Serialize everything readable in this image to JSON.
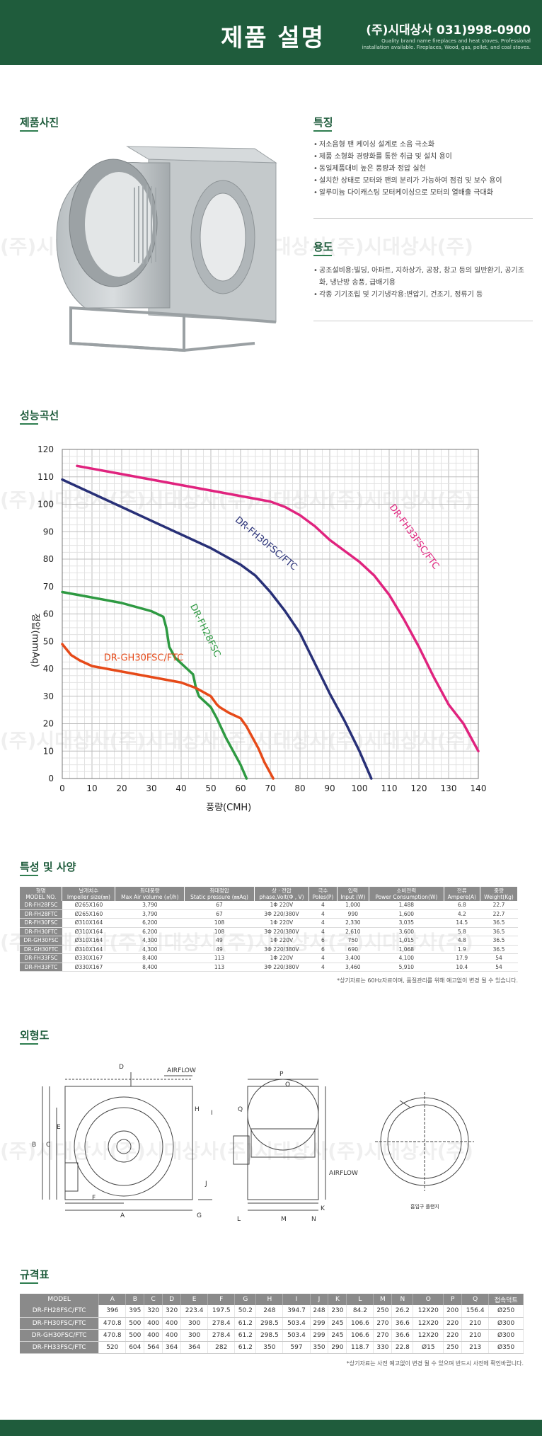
{
  "header": {
    "title": "제품 설명",
    "company": "(주)시대상사 031)998-0900",
    "slogan": "Quality brand name fireplaces and heat stoves. Professional installation available. Fireplaces, Wood, gas, pellet, and coal stoves."
  },
  "sections": {
    "photo": "제품사진",
    "features": "특징",
    "usage": "용도",
    "curve": "성능곡선",
    "specs": "특성 및 사양",
    "outline": "외형도",
    "dims": "규격표"
  },
  "watermark": "(주)시대상사(주)시대상사(주)시대상사(주)시대상사(주)",
  "features": [
    "저소음형 팬 케이싱 설계로 소음 극소화",
    "제품 소형화 경량화를 통한 취급 및 설치 용이",
    "동일제품대비 높은 풍량과 정압 실현",
    "설치한 상태로 모터와 팬의 분리가 가능하여 점검 및 보수 용이",
    "알루미늄 다이캐스팅 모터케이싱으로 모터의 열배출 극대화"
  ],
  "usage": [
    "공조설비용:빌딩, 아파트, 지하상가, 공장, 창고 등의 일반환기, 공기조화, 냉난방 송풍, 급배기용",
    "각종 기기조립 및 기기냉각용:변압기, 건조기, 정류기 등"
  ],
  "chart_data": {
    "type": "line",
    "xlabel": "풍량(CMH)",
    "ylabel": "정압(mmAq)",
    "xlim": [
      0,
      140
    ],
    "ylim": [
      0,
      120
    ],
    "xticks": [
      "0",
      "10",
      "20",
      "30",
      "40",
      "50",
      "60",
      "70",
      "80",
      "90",
      "100",
      "110",
      "120",
      "130",
      "140"
    ],
    "yticks": [
      "0",
      "10",
      "20",
      "30",
      "40",
      "50",
      "60",
      "70",
      "80",
      "90",
      "100",
      "110",
      "120"
    ],
    "grid": true,
    "series": [
      {
        "name": "DR-FH33FSC/FTC",
        "color": "#e0237e",
        "x": [
          5,
          20,
          40,
          60,
          70,
          75,
          80,
          85,
          90,
          95,
          100,
          105,
          110,
          115,
          120,
          125,
          130,
          135,
          140
        ],
        "y": [
          114,
          111,
          107,
          103,
          101,
          99,
          96,
          92,
          87,
          83,
          79,
          74,
          67,
          58,
          48,
          37,
          27,
          20,
          10
        ]
      },
      {
        "name": "DR-FH30FSC/FTC",
        "color": "#283077",
        "x": [
          0,
          10,
          20,
          30,
          40,
          50,
          60,
          65,
          70,
          75,
          80,
          85,
          90,
          95,
          100,
          104
        ],
        "y": [
          109,
          104,
          99,
          94,
          89,
          84,
          78,
          74,
          68,
          61,
          53,
          42,
          31,
          21,
          10,
          0
        ]
      },
      {
        "name": "DR-FH28FSC",
        "color": "#2e9a42",
        "x": [
          0,
          10,
          20,
          30,
          34,
          35,
          36,
          38,
          42,
          44,
          45,
          46,
          50,
          52,
          55,
          58,
          60,
          62
        ],
        "y": [
          68,
          66,
          64,
          61,
          59,
          55,
          48,
          44,
          40,
          38,
          33,
          30,
          26,
          22,
          15,
          9,
          5,
          0
        ]
      },
      {
        "name": "DR-GH30FSC/FTC",
        "color": "#e64a19",
        "x": [
          0,
          3,
          6,
          10,
          20,
          30,
          40,
          45,
          50,
          52,
          53,
          56,
          60,
          62,
          64,
          66,
          68,
          71
        ],
        "y": [
          49,
          45,
          43,
          41,
          39,
          37,
          35,
          33,
          30,
          27,
          26,
          24,
          22,
          19,
          15,
          11,
          6,
          0
        ]
      }
    ]
  },
  "spec_table": {
    "headers": [
      [
        "형명",
        "MODEL NO."
      ],
      [
        "날개치수",
        "Impeller size(㎜)"
      ],
      [
        "최대풍량",
        "Max Air volume (㎥/h)"
      ],
      [
        "최대정압",
        "Static pressure (㎜Aq)"
      ],
      [
        "상 · 전압",
        "phase,Volt(Φ , V)"
      ],
      [
        "극수",
        "Poles(P)"
      ],
      [
        "입력",
        "Input (W)"
      ],
      [
        "소비전력",
        "Power Consumption(W)"
      ],
      [
        "전류",
        "Ampere(A)"
      ],
      [
        "중량",
        "Weight(Kg)"
      ]
    ],
    "rows": [
      [
        "DR-FH28FSC",
        "Ø265X160",
        "3,790",
        "67",
        "1Φ 220V",
        "4",
        "1,000",
        "1,488",
        "6.8",
        "22.7"
      ],
      [
        "DR-FH28FTC",
        "Ø265X160",
        "3,790",
        "67",
        "3Φ 220/380V",
        "4",
        "990",
        "1,600",
        "4.2",
        "22.7"
      ],
      [
        "DR-FH30FSC",
        "Ø310X164",
        "6,200",
        "108",
        "1Φ 220V",
        "4",
        "2,330",
        "3,035",
        "14.5",
        "36.5"
      ],
      [
        "DR-FH30FTC",
        "Ø310X164",
        "6,200",
        "108",
        "3Φ 220/380V",
        "4",
        "2,610",
        "3,600",
        "5.8",
        "36.5"
      ],
      [
        "DR-GH30FSC",
        "Ø310X164",
        "4,300",
        "49",
        "1Φ 220V",
        "6",
        "750",
        "1,015",
        "4.8",
        "36.5"
      ],
      [
        "DR-GH30FTC",
        "Ø310X164",
        "4,300",
        "49",
        "3Φ 220/380V",
        "6",
        "690",
        "1,068",
        "1.9",
        "36.5"
      ],
      [
        "DR-FH33FSC",
        "Ø330X167",
        "8,400",
        "113",
        "1Φ 220V",
        "4",
        "3,400",
        "4,100",
        "17.9",
        "54"
      ],
      [
        "DR-FH33FTC",
        "Ø330X167",
        "8,400",
        "113",
        "3Φ 220/380V",
        "4",
        "3,460",
        "5,910",
        "10.4",
        "54"
      ]
    ],
    "note": "*상기자료는 60Hz자료이며, 품질관리를 위해 예고없이 변경 될 수 있습니다."
  },
  "outline": {
    "labels": [
      "D",
      "E",
      "B",
      "C",
      "F",
      "A",
      "G",
      "H",
      "I",
      "J",
      "P",
      "O",
      "Q",
      "L",
      "M",
      "N",
      "K"
    ],
    "airflow": "AIRFLOW",
    "caption": "흡입구 플랜지"
  },
  "dim_table": {
    "headers": [
      "MODEL",
      "A",
      "B",
      "C",
      "D",
      "E",
      "F",
      "G",
      "H",
      "I",
      "J",
      "K",
      "L",
      "M",
      "N",
      "O",
      "P",
      "Q",
      "접속덕트"
    ],
    "rows": [
      [
        "DR-FH28FSC/FTC",
        "396",
        "395",
        "320",
        "320",
        "223.4",
        "197.5",
        "50.2",
        "248",
        "394.7",
        "248",
        "230",
        "84.2",
        "250",
        "26.2",
        "12X20",
        "200",
        "156.4",
        "Ø250"
      ],
      [
        "DR-FH30FSC/FTC",
        "470.8",
        "500",
        "400",
        "400",
        "300",
        "278.4",
        "61.2",
        "298.5",
        "503.4",
        "299",
        "245",
        "106.6",
        "270",
        "36.6",
        "12X20",
        "220",
        "210",
        "Ø300"
      ],
      [
        "DR-GH30FSC/FTC",
        "470.8",
        "500",
        "400",
        "400",
        "300",
        "278.4",
        "61.2",
        "298.5",
        "503.4",
        "299",
        "245",
        "106.6",
        "270",
        "36.6",
        "12X20",
        "220",
        "210",
        "Ø300"
      ],
      [
        "DR-FH33FSC/FTC",
        "520",
        "604",
        "564",
        "364",
        "364",
        "282",
        "61.2",
        "350",
        "597",
        "350",
        "290",
        "118.7",
        "330",
        "22.8",
        "Ø15",
        "250",
        "213",
        "Ø350"
      ]
    ],
    "note": "*상기자료는 사전 예고없이 변경 될 수 있으며 반드시 사전에 확인바랍니다."
  }
}
